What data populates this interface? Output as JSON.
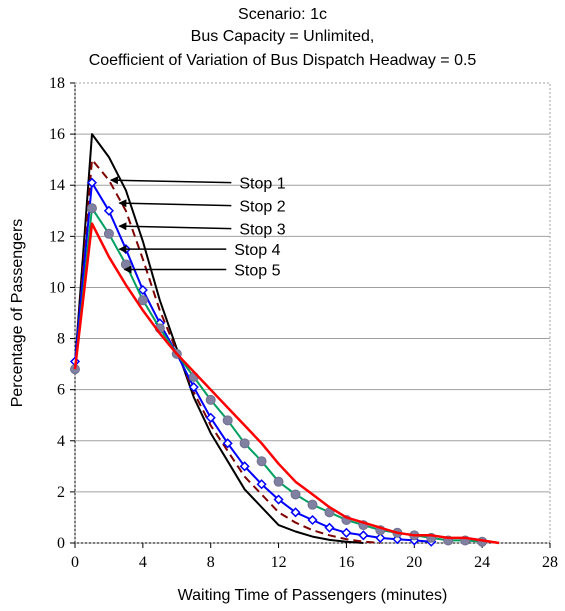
{
  "chart_data": {
    "type": "line",
    "title_lines": [
      "Scenario: 1c",
      "Bus Capacity = Unlimited,",
      "Coefficient of Variation of Bus Dispatch Headway = 0.5"
    ],
    "xlabel": "Waiting Time of Passengers (minutes)",
    "ylabel": "Percentage of  Passengers",
    "xlim": [
      0,
      28
    ],
    "ylim": [
      0,
      18
    ],
    "xticks": [
      0,
      4,
      8,
      12,
      16,
      20,
      24,
      28
    ],
    "yticks": [
      0,
      2,
      4,
      6,
      8,
      10,
      12,
      14,
      16,
      18
    ],
    "grid": "horizontal",
    "series": [
      {
        "name": "Stop 1",
        "color": "#000000",
        "style": "solid",
        "marker": "none",
        "x": [
          0,
          1,
          2,
          3,
          4,
          5,
          6,
          7,
          8,
          9,
          10,
          11,
          12,
          13,
          14,
          15,
          16,
          17
        ],
        "y": [
          7.0,
          16.0,
          15.1,
          13.8,
          11.8,
          9.5,
          7.6,
          5.7,
          4.3,
          3.2,
          2.1,
          1.4,
          0.7,
          0.45,
          0.25,
          0.12,
          0.05,
          0.0
        ]
      },
      {
        "name": "Stop 2",
        "color": "#7f0000",
        "style": "dashed",
        "marker": "none",
        "x": [
          0,
          1,
          2,
          3,
          4,
          5,
          6,
          7,
          8,
          9,
          10,
          11,
          12,
          13,
          14,
          15,
          16,
          17,
          18
        ],
        "y": [
          7.0,
          15.0,
          14.2,
          13.0,
          11.1,
          9.1,
          7.5,
          5.9,
          4.6,
          3.6,
          2.6,
          1.9,
          1.2,
          0.8,
          0.5,
          0.3,
          0.15,
          0.05,
          0.0
        ]
      },
      {
        "name": "Stop 3",
        "color": "#0000ff",
        "style": "solid",
        "marker": "diamond",
        "x": [
          0,
          1,
          2,
          3,
          4,
          5,
          6,
          7,
          8,
          9,
          10,
          11,
          12,
          13,
          14,
          15,
          16,
          17,
          18,
          19,
          20,
          21
        ],
        "y": [
          7.1,
          14.1,
          13.0,
          11.5,
          9.9,
          8.6,
          7.4,
          6.1,
          4.9,
          3.9,
          3.0,
          2.3,
          1.7,
          1.2,
          0.9,
          0.6,
          0.4,
          0.3,
          0.2,
          0.15,
          0.1,
          0.05
        ]
      },
      {
        "name": "Stop 4",
        "color": "#00a060",
        "style": "solid",
        "marker": "circle",
        "x": [
          0,
          1,
          2,
          3,
          4,
          5,
          6,
          7,
          8,
          9,
          10,
          11,
          12,
          13,
          14,
          15,
          16,
          17,
          18,
          19,
          20,
          21,
          22,
          23,
          24
        ],
        "y": [
          6.8,
          13.1,
          12.1,
          10.9,
          9.5,
          8.4,
          7.4,
          6.5,
          5.6,
          4.8,
          3.9,
          3.2,
          2.4,
          1.9,
          1.5,
          1.2,
          0.9,
          0.7,
          0.5,
          0.4,
          0.3,
          0.2,
          0.1,
          0.1,
          0.05
        ]
      },
      {
        "name": "Stop 5",
        "color": "#ff0000",
        "style": "solid",
        "marker": "none",
        "x": [
          0,
          1,
          2,
          3,
          4,
          5,
          6,
          7,
          8,
          9,
          10,
          11,
          12,
          13,
          14,
          15,
          16,
          17,
          18,
          19,
          20,
          21,
          22,
          23,
          24,
          25
        ],
        "y": [
          6.8,
          12.5,
          11.2,
          10.1,
          9.1,
          8.2,
          7.4,
          6.7,
          6.0,
          5.3,
          4.6,
          3.9,
          3.1,
          2.4,
          1.9,
          1.4,
          1.0,
          0.8,
          0.6,
          0.4,
          0.3,
          0.3,
          0.2,
          0.2,
          0.1,
          0.0
        ]
      }
    ],
    "annotations": [
      {
        "label": "Stop 1",
        "target": [
          2,
          14.2
        ],
        "text_pos": [
          4.5,
          14.1
        ]
      },
      {
        "label": "Stop 2",
        "target": [
          2.5,
          13.3
        ],
        "text_pos": [
          4.5,
          13.2
        ]
      },
      {
        "label": "Stop 3",
        "target": [
          2.5,
          12.4
        ],
        "text_pos": [
          4.5,
          12.3
        ]
      },
      {
        "label": "Stop 4",
        "target": [
          2.5,
          11.5
        ],
        "text_pos": [
          4.2,
          11.5
        ]
      },
      {
        "label": "Stop 5",
        "target": [
          2.8,
          10.7
        ],
        "text_pos": [
          4.2,
          10.7
        ]
      }
    ]
  }
}
